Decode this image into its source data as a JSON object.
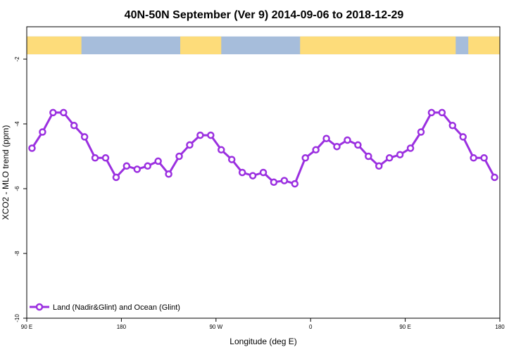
{
  "chart_data": {
    "type": "line",
    "title": "40N-50N September (Ver 9)   2014-09-06 to 2018-12-29",
    "xlabel": "Longitude (deg E)",
    "ylabel": "XCO2 - MLO trend (ppm)",
    "xlim": [
      0,
      45
    ],
    "ylim": [
      -10,
      -1
    ],
    "x_ticks": [
      {
        "value": 0,
        "label": "90 E"
      },
      {
        "value": 9,
        "label": "180"
      },
      {
        "value": 18,
        "label": "90 W"
      },
      {
        "value": 27,
        "label": "0"
      },
      {
        "value": 36,
        "label": "90 E"
      },
      {
        "value": 45,
        "label": "180"
      }
    ],
    "y_ticks": [
      {
        "value": -2,
        "label": "-2"
      },
      {
        "value": -4,
        "label": "-4"
      },
      {
        "value": -6,
        "label": "-6"
      },
      {
        "value": -8,
        "label": "-8"
      },
      {
        "value": -10,
        "label": "-10"
      }
    ],
    "legend_position": "bottom-left",
    "series": [
      {
        "name": "Land (Nadir&Glint) and Ocean (Glint)",
        "color": "#9b30e0",
        "x": [
          0.5,
          1.5,
          2.5,
          3.5,
          4.5,
          5.5,
          6.5,
          7.5,
          8.5,
          9.5,
          10.5,
          11.5,
          12.5,
          13.5,
          14.5,
          15.5,
          16.5,
          17.5,
          18.5,
          19.5,
          20.5,
          21.5,
          22.5,
          23.5,
          24.5,
          25.5,
          26.5,
          27.5,
          28.5,
          29.5,
          30.5,
          31.5,
          32.5,
          33.5,
          34.5,
          35.5,
          36.5,
          37.5,
          38.5,
          39.5,
          40.5,
          41.5,
          42.5,
          43.5,
          44.5
        ],
        "y": [
          -4.75,
          -4.25,
          -3.65,
          -3.65,
          -4.05,
          -4.4,
          -5.05,
          -5.05,
          -5.65,
          -5.3,
          -5.4,
          -5.3,
          -5.15,
          -5.55,
          -5.0,
          -4.65,
          -4.35,
          -4.35,
          -4.8,
          -5.1,
          -5.5,
          -5.6,
          -5.5,
          -5.8,
          -5.75,
          -5.85,
          -5.05,
          -4.8,
          -4.45,
          -4.7,
          -4.5,
          -4.65,
          -5.0,
          -5.3,
          -5.05,
          -4.95,
          -4.75,
          -4.25,
          -3.65,
          -3.65,
          -4.05,
          -4.4,
          -5.05,
          -5.05,
          -5.65
        ]
      }
    ],
    "map_strip": {
      "y_top": -1.3,
      "y_bottom": -1.85,
      "ocean_color": "#a6bddb",
      "land_color": "#fddc7a",
      "land": [
        [
          0,
          5.2
        ],
        [
          14.6,
          18.5
        ],
        [
          26.0,
          40.8
        ],
        [
          42.0,
          45
        ]
      ]
    }
  }
}
